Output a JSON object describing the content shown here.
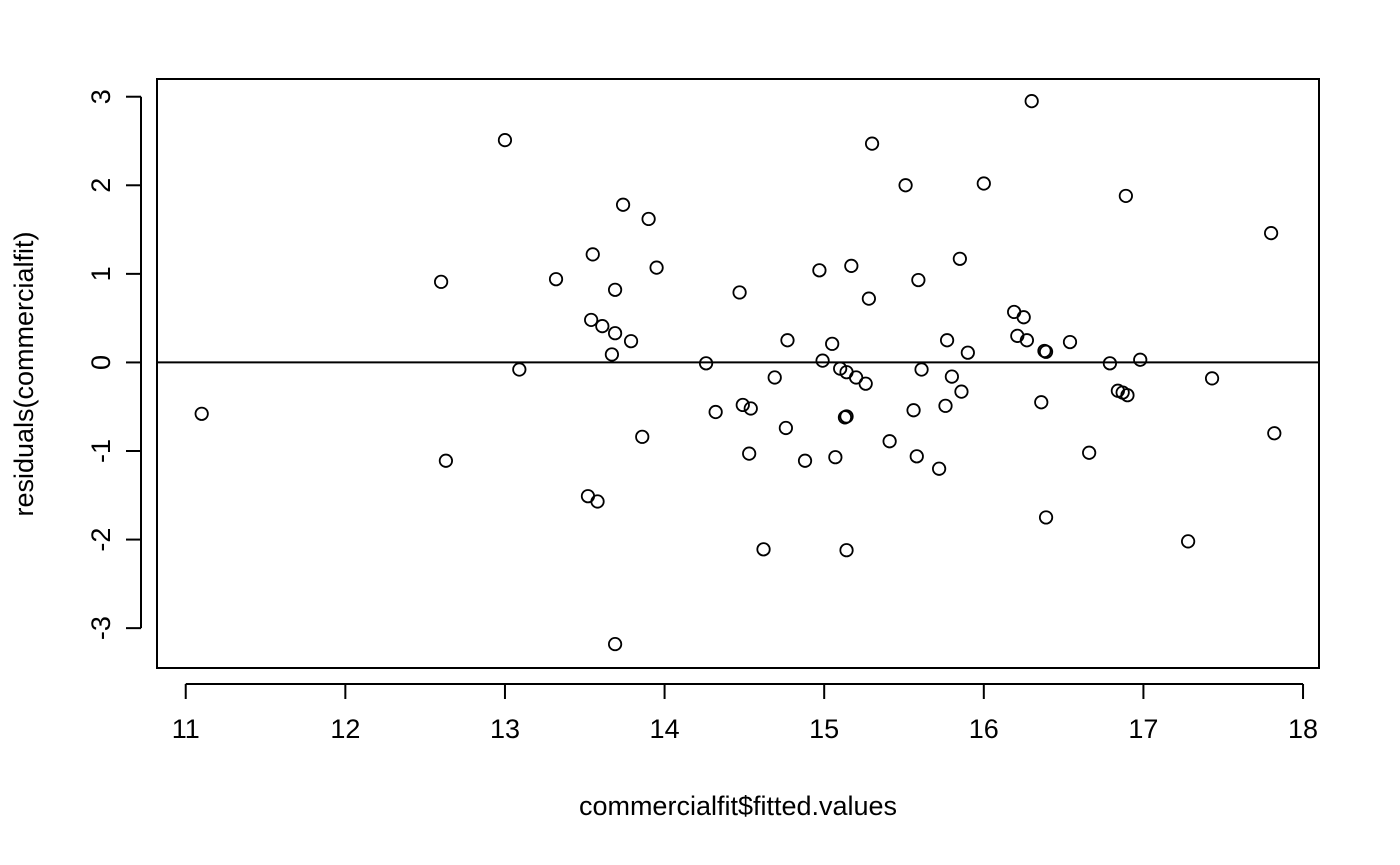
{
  "chart_data": {
    "type": "scatter",
    "title": "",
    "xlabel": "commercialfit$fitted.values",
    "ylabel": "residuals(commercialfit)",
    "xlim": [
      10.82,
      18.1
    ],
    "ylim": [
      -3.45,
      3.2
    ],
    "xticks": [
      11,
      12,
      13,
      14,
      15,
      16,
      17,
      18
    ],
    "yticks": [
      -3,
      -2,
      -1,
      0,
      1,
      2,
      3
    ],
    "grid": false,
    "reference_line": {
      "y": 0
    },
    "marker": "open-circle",
    "colors": {
      "points": "#000000",
      "axes": "#000000",
      "background": "#ffffff"
    },
    "points": [
      [
        11.1,
        -0.58
      ],
      [
        12.6,
        0.91
      ],
      [
        12.63,
        -1.11
      ],
      [
        13.0,
        2.51
      ],
      [
        13.09,
        -0.08
      ],
      [
        13.32,
        0.94
      ],
      [
        13.52,
        -1.51
      ],
      [
        13.54,
        0.48
      ],
      [
        13.55,
        1.22
      ],
      [
        13.58,
        -1.57
      ],
      [
        13.61,
        0.41
      ],
      [
        13.67,
        0.09
      ],
      [
        13.69,
        0.82
      ],
      [
        13.69,
        0.33
      ],
      [
        13.69,
        -3.18
      ],
      [
        13.74,
        1.78
      ],
      [
        13.79,
        0.24
      ],
      [
        13.86,
        -0.84
      ],
      [
        13.9,
        1.62
      ],
      [
        13.95,
        1.07
      ],
      [
        14.26,
        -0.01
      ],
      [
        14.32,
        -0.56
      ],
      [
        14.47,
        0.79
      ],
      [
        14.49,
        -0.48
      ],
      [
        14.53,
        -1.03
      ],
      [
        14.54,
        -0.52
      ],
      [
        14.62,
        -2.11
      ],
      [
        14.69,
        -0.17
      ],
      [
        14.76,
        -0.74
      ],
      [
        14.77,
        0.25
      ],
      [
        14.88,
        -1.11
      ],
      [
        14.97,
        1.04
      ],
      [
        14.99,
        0.02
      ],
      [
        15.05,
        0.21
      ],
      [
        15.07,
        -1.07
      ],
      [
        15.1,
        -0.07
      ],
      [
        15.13,
        -0.62
      ],
      [
        15.14,
        -0.61
      ],
      [
        15.14,
        -0.11
      ],
      [
        15.14,
        -2.12
      ],
      [
        15.17,
        1.09
      ],
      [
        15.2,
        -0.17
      ],
      [
        15.26,
        -0.24
      ],
      [
        15.28,
        0.72
      ],
      [
        15.3,
        2.47
      ],
      [
        15.41,
        -0.89
      ],
      [
        15.51,
        2.0
      ],
      [
        15.56,
        -0.54
      ],
      [
        15.58,
        -1.06
      ],
      [
        15.59,
        0.93
      ],
      [
        15.61,
        -0.08
      ],
      [
        15.72,
        -1.2
      ],
      [
        15.76,
        -0.49
      ],
      [
        15.77,
        0.25
      ],
      [
        15.8,
        -0.16
      ],
      [
        15.85,
        1.17
      ],
      [
        15.86,
        -0.33
      ],
      [
        15.9,
        0.11
      ],
      [
        16.0,
        2.02
      ],
      [
        16.19,
        0.57
      ],
      [
        16.21,
        0.3
      ],
      [
        16.25,
        0.51
      ],
      [
        16.27,
        0.25
      ],
      [
        16.3,
        2.95
      ],
      [
        16.36,
        -0.45
      ],
      [
        16.38,
        0.13
      ],
      [
        16.39,
        0.12
      ],
      [
        16.39,
        -1.75
      ],
      [
        16.54,
        0.23
      ],
      [
        16.66,
        -1.02
      ],
      [
        16.79,
        -0.01
      ],
      [
        16.84,
        -0.32
      ],
      [
        16.87,
        -0.34
      ],
      [
        16.89,
        1.88
      ],
      [
        16.9,
        -0.37
      ],
      [
        16.98,
        0.03
      ],
      [
        17.28,
        -2.02
      ],
      [
        17.43,
        -0.18
      ],
      [
        17.8,
        1.46
      ],
      [
        17.82,
        -0.8
      ]
    ]
  }
}
